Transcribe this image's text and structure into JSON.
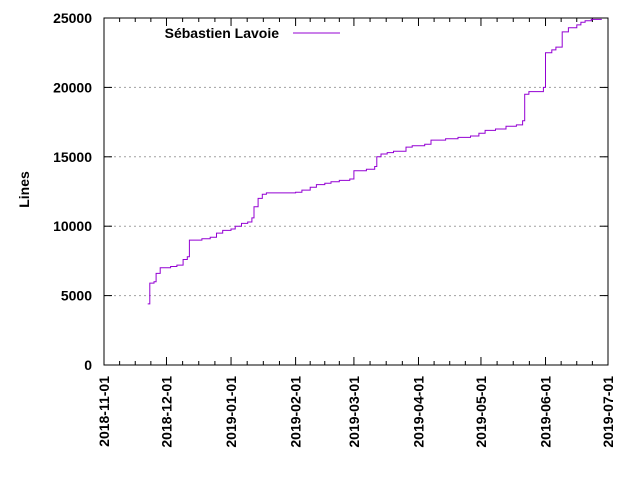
{
  "chart_data": {
    "type": "line",
    "title": "",
    "xlabel": "",
    "ylabel": "Lines",
    "ylim": [
      0,
      25000
    ],
    "xlim": [
      "2018-11-01",
      "2019-07-01"
    ],
    "grid": "horizontal dashed",
    "legend_position": "top-left",
    "colors": {
      "series": "#9400d3",
      "grid": "#a0a0a0",
      "axis": "#000000"
    },
    "x_tick_labels": [
      "2018-11-01",
      "2018-12-01",
      "2019-01-01",
      "2019-02-01",
      "2019-03-01",
      "2019-04-01",
      "2019-05-01",
      "2019-06-01",
      "2019-07-01"
    ],
    "y_tick_labels": [
      "0",
      "5000",
      "10000",
      "15000",
      "20000",
      "25000"
    ],
    "series": [
      {
        "name": "Sébastien Lavoie",
        "step": true,
        "points": [
          [
            "2018-11-22",
            4400
          ],
          [
            "2018-11-23",
            5900
          ],
          [
            "2018-11-25",
            6000
          ],
          [
            "2018-11-26",
            6600
          ],
          [
            "2018-11-28",
            7000
          ],
          [
            "2018-12-03",
            7100
          ],
          [
            "2018-12-06",
            7200
          ],
          [
            "2018-12-09",
            7600
          ],
          [
            "2018-12-11",
            7800
          ],
          [
            "2018-12-12",
            9000
          ],
          [
            "2018-12-18",
            9100
          ],
          [
            "2018-12-22",
            9200
          ],
          [
            "2018-12-25",
            9500
          ],
          [
            "2018-12-28",
            9700
          ],
          [
            "2019-01-01",
            9800
          ],
          [
            "2019-01-03",
            10000
          ],
          [
            "2019-01-06",
            10200
          ],
          [
            "2019-01-09",
            10300
          ],
          [
            "2019-01-11",
            10600
          ],
          [
            "2019-01-12",
            11400
          ],
          [
            "2019-01-14",
            12000
          ],
          [
            "2019-01-16",
            12300
          ],
          [
            "2019-01-18",
            12400
          ],
          [
            "2019-02-01",
            12450
          ],
          [
            "2019-02-04",
            12600
          ],
          [
            "2019-02-08",
            12800
          ],
          [
            "2019-02-11",
            13000
          ],
          [
            "2019-02-15",
            13100
          ],
          [
            "2019-02-18",
            13200
          ],
          [
            "2019-02-22",
            13300
          ],
          [
            "2019-02-27",
            13400
          ],
          [
            "2019-03-01",
            14000
          ],
          [
            "2019-03-07",
            14100
          ],
          [
            "2019-03-11",
            14300
          ],
          [
            "2019-03-12",
            15000
          ],
          [
            "2019-03-14",
            15200
          ],
          [
            "2019-03-17",
            15300
          ],
          [
            "2019-03-20",
            15400
          ],
          [
            "2019-03-26",
            15700
          ],
          [
            "2019-03-29",
            15800
          ],
          [
            "2019-04-04",
            15900
          ],
          [
            "2019-04-07",
            16200
          ],
          [
            "2019-04-14",
            16300
          ],
          [
            "2019-04-20",
            16400
          ],
          [
            "2019-04-26",
            16500
          ],
          [
            "2019-04-30",
            16700
          ],
          [
            "2019-05-03",
            16900
          ],
          [
            "2019-05-08",
            17000
          ],
          [
            "2019-05-13",
            17200
          ],
          [
            "2019-05-18",
            17300
          ],
          [
            "2019-05-21",
            17600
          ],
          [
            "2019-05-22",
            19500
          ],
          [
            "2019-05-24",
            19700
          ],
          [
            "2019-05-31",
            20000
          ],
          [
            "2019-06-01",
            22500
          ],
          [
            "2019-06-04",
            22700
          ],
          [
            "2019-06-06",
            22900
          ],
          [
            "2019-06-09",
            24000
          ],
          [
            "2019-06-12",
            24300
          ],
          [
            "2019-06-16",
            24500
          ],
          [
            "2019-06-18",
            24700
          ],
          [
            "2019-06-20",
            24800
          ],
          [
            "2019-06-23",
            24900
          ],
          [
            "2019-06-28",
            24900
          ]
        ]
      }
    ]
  }
}
